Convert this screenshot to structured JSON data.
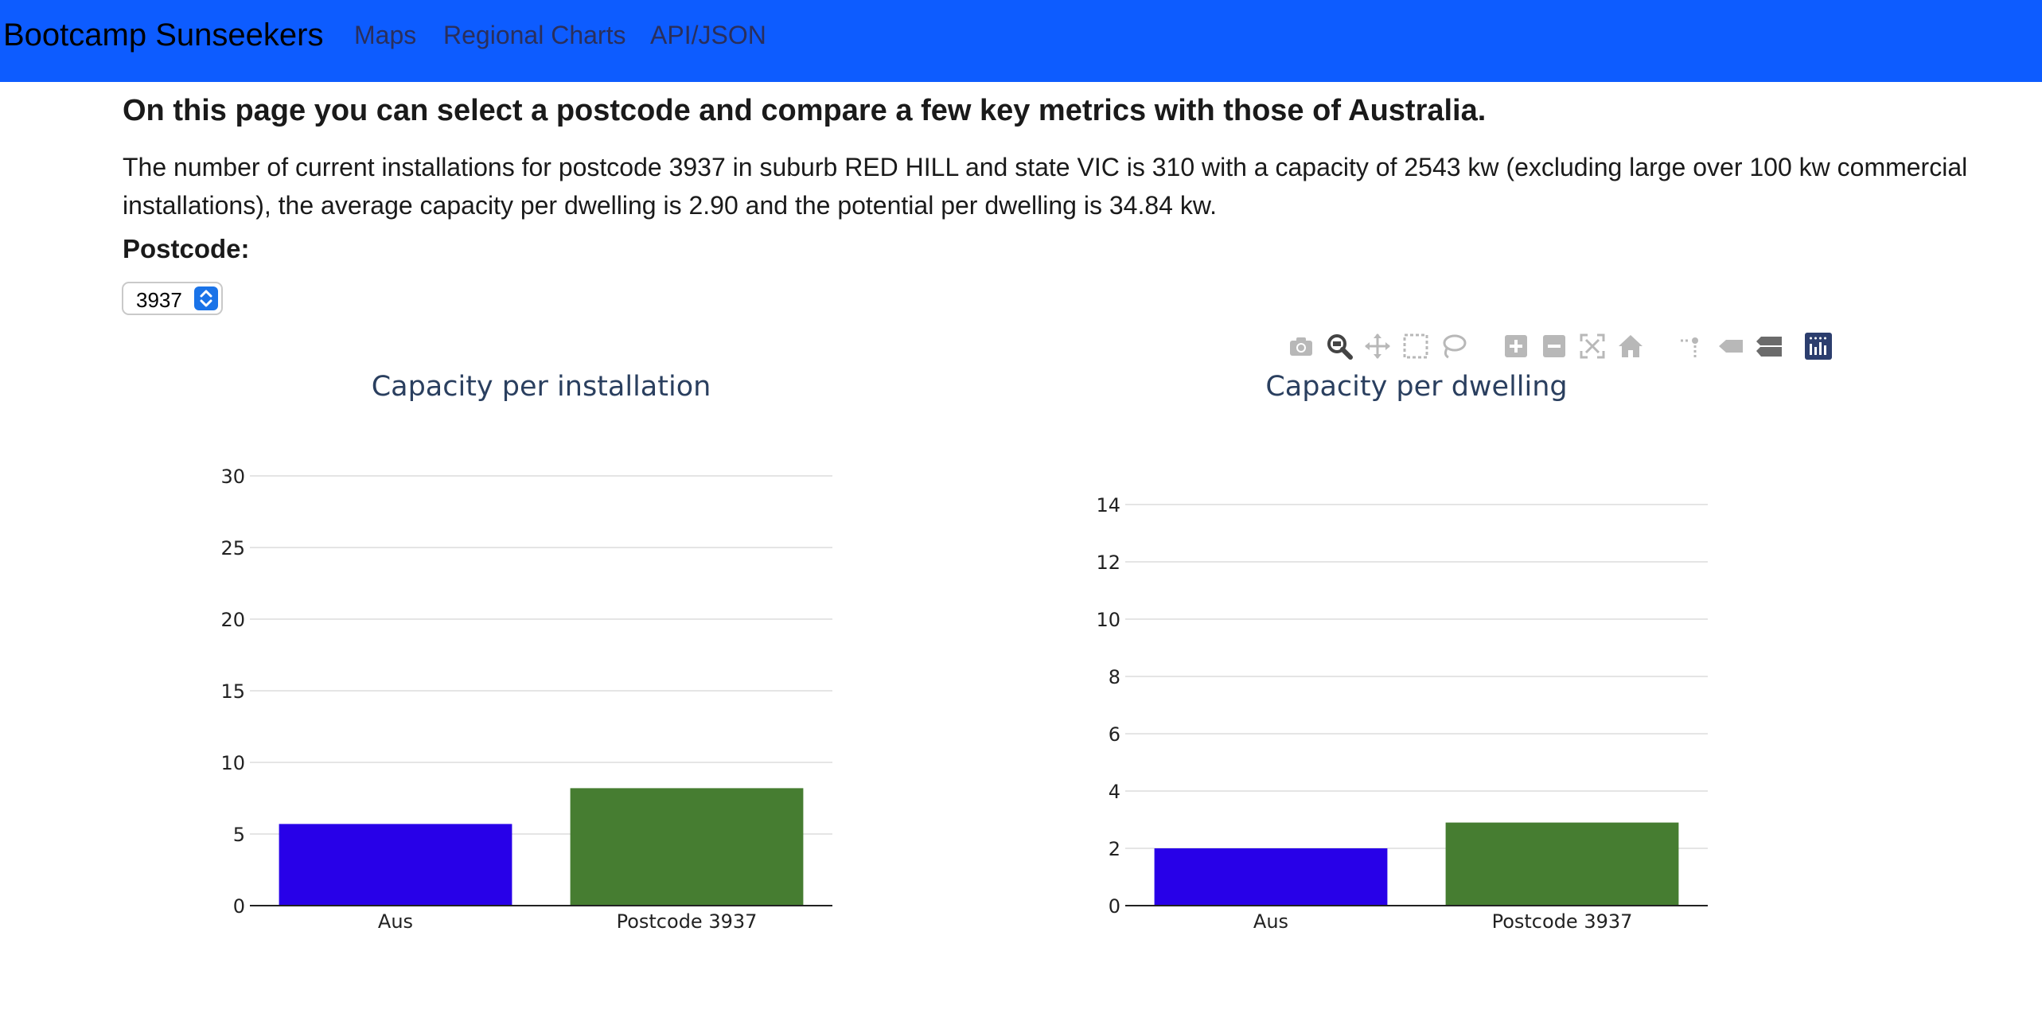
{
  "navbar": {
    "brand": "Bootcamp Sunseekers",
    "links": [
      "Maps",
      "Regional Charts",
      "API/JSON"
    ]
  },
  "main": {
    "heading": "On this page you can select a postcode and compare a few key metrics with those of Australia.",
    "summary": "The number of current installations for postcode 3937 in suburb RED HILL and state VIC is 310 with a capacity of 2543 kw (excluding large over 100 kw commercial installations), the average capacity per dwelling is 2.90 and the potential per dwelling is 34.84 kw.",
    "postcode_label": "Postcode:",
    "postcode_value": "3937"
  },
  "modebar": {
    "icons": [
      "camera-icon",
      "zoom-icon",
      "pan-icon",
      "box-select-icon",
      "lasso-icon",
      "zoom-in-icon",
      "zoom-out-icon",
      "autoscale-icon",
      "reset-axes-icon",
      "spike-lines-icon",
      "hover-closest-icon",
      "hover-compare-icon",
      "plotly-logo-icon"
    ]
  },
  "colors": {
    "navbar": "#0d5cff",
    "aus_bar": "#2800e8",
    "postcode_bar": "#467d31"
  },
  "chart_data": [
    {
      "type": "bar",
      "title": "Capacity per installation",
      "categories": [
        "Aus",
        "Postcode 3937"
      ],
      "values": [
        5.7,
        8.2
      ],
      "colors": [
        "#2800e8",
        "#467d31"
      ],
      "ylim": [
        0,
        30
      ],
      "yticks": [
        0,
        5,
        10,
        15,
        20,
        25,
        30
      ],
      "xlabel": "",
      "ylabel": ""
    },
    {
      "type": "bar",
      "title": "Capacity per dwelling",
      "categories": [
        "Aus",
        "Postcode 3937"
      ],
      "values": [
        2.0,
        2.9
      ],
      "colors": [
        "#2800e8",
        "#467d31"
      ],
      "ylim": [
        0,
        14
      ],
      "yticks": [
        0,
        2,
        4,
        6,
        8,
        10,
        12,
        14
      ],
      "xlabel": "",
      "ylabel": ""
    }
  ]
}
